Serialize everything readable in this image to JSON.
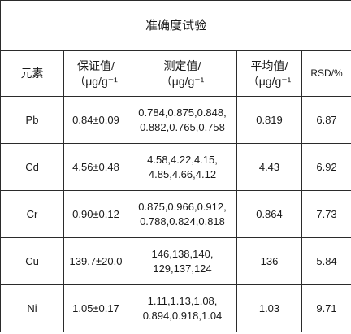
{
  "title": "准确度试验",
  "headers": {
    "element": "元素",
    "certified_line1": "保证值/",
    "certified_line2": "（μg/g⁻¹",
    "measured_line1": "测定值/",
    "measured_line2": "（μg/g⁻¹",
    "mean_line1": "平均值/",
    "mean_line2": "（μg/g⁻¹",
    "rsd": "RSD/%"
  },
  "rows": [
    {
      "element": "Pb",
      "certified": "0.84±0.09",
      "measured_line1": "0.784,0.875,0.848,",
      "measured_line2": "0.882,0.765,0.758",
      "mean": "0.819",
      "rsd": "6.87"
    },
    {
      "element": "Cd",
      "certified": "4.56±0.48",
      "measured_line1": "4.58,4.22,4.15,",
      "measured_line2": "4.85,4.66,4.12",
      "mean": "4.43",
      "rsd": "6.92"
    },
    {
      "element": "Cr",
      "certified": "0.90±0.12",
      "measured_line1": "0.875,0.966,0.912,",
      "measured_line2": "0.788,0.824,0.818",
      "mean": "0.864",
      "rsd": "7.73"
    },
    {
      "element": "Cu",
      "certified": "139.7±20.0",
      "measured_line1": "146,138,140,",
      "measured_line2": "129,137,124",
      "mean": "136",
      "rsd": "5.84"
    },
    {
      "element": "Ni",
      "certified": "1.05±0.17",
      "measured_line1": "1.11,1.13,1.08,",
      "measured_line2": "0.894,0.918,1.04",
      "mean": "1.03",
      "rsd": "9.71"
    }
  ]
}
